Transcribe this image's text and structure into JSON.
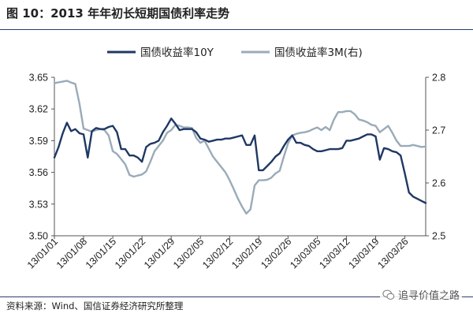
{
  "figure": {
    "title": "图  10：2013 年年初长短期国债利率走势",
    "source": "资料来源：Wind、国信证券经济研究所整理",
    "watermark": "追寻价值之路"
  },
  "chart_data": {
    "type": "line",
    "title": "图  10：2013 年年初长短期国债利率走势",
    "x": [
      "13/01/01",
      "13/01/02",
      "13/01/03",
      "13/01/04",
      "13/01/05",
      "13/01/06",
      "13/01/07",
      "13/01/08",
      "13/01/09",
      "13/01/10",
      "13/01/11",
      "13/01/12",
      "13/01/13",
      "13/01/14",
      "13/01/15",
      "13/01/16",
      "13/01/17",
      "13/01/18",
      "13/01/19",
      "13/01/20",
      "13/01/21",
      "13/01/22",
      "13/01/23",
      "13/01/24",
      "13/01/25",
      "13/01/26",
      "13/01/27",
      "13/01/28",
      "13/01/29",
      "13/01/30",
      "13/01/31",
      "13/02/01",
      "13/02/02",
      "13/02/03",
      "13/02/04",
      "13/02/05",
      "13/02/06",
      "13/02/07",
      "13/02/08",
      "13/02/09",
      "13/02/10",
      "13/02/11",
      "13/02/12",
      "13/02/13",
      "13/02/14",
      "13/02/15",
      "13/02/16",
      "13/02/17",
      "13/02/18",
      "13/02/19",
      "13/02/20",
      "13/02/21",
      "13/02/22",
      "13/02/23",
      "13/02/24",
      "13/02/25",
      "13/02/26",
      "13/02/27",
      "13/02/28",
      "13/03/01",
      "13/03/02",
      "13/03/03",
      "13/03/04",
      "13/03/05",
      "13/03/06",
      "13/03/07",
      "13/03/08",
      "13/03/09",
      "13/03/10",
      "13/03/11",
      "13/03/12",
      "13/03/13",
      "13/03/14",
      "13/03/15",
      "13/03/16",
      "13/03/17",
      "13/03/18",
      "13/03/19",
      "13/03/20",
      "13/03/21",
      "13/03/22",
      "13/03/23",
      "13/03/24",
      "13/03/25",
      "13/03/26",
      "13/03/27",
      "13/03/28",
      "13/03/29",
      "13/03/30",
      "13/03/31"
    ],
    "x_ticks": [
      "13/01/01",
      "13/01/08",
      "13/01/15",
      "13/01/22",
      "13/01/29",
      "13/02/05",
      "13/02/12",
      "13/02/19",
      "13/02/26",
      "13/03/05",
      "13/03/12",
      "13/03/19",
      "13/03/26"
    ],
    "series": [
      {
        "name": "国债收益率10Y",
        "axis": "left",
        "color": "#1f3864",
        "values": [
          3.574,
          3.584,
          3.597,
          3.607,
          3.599,
          3.601,
          3.597,
          3.596,
          3.574,
          3.599,
          3.602,
          3.601,
          3.601,
          3.603,
          3.604,
          3.598,
          3.582,
          3.582,
          3.576,
          3.576,
          3.574,
          3.57,
          3.584,
          3.587,
          3.588,
          3.59,
          3.598,
          3.604,
          3.611,
          3.606,
          3.6,
          3.601,
          3.601,
          3.601,
          3.598,
          3.592,
          3.591,
          3.589,
          3.59,
          3.591,
          3.591,
          3.592,
          3.592,
          3.593,
          3.594,
          3.595,
          3.586,
          3.586,
          3.595,
          3.562,
          3.562,
          3.566,
          3.57,
          3.575,
          3.578,
          3.585,
          3.591,
          3.595,
          3.588,
          3.588,
          3.586,
          3.585,
          3.582,
          3.58,
          3.58,
          3.581,
          3.582,
          3.582,
          3.582,
          3.583,
          3.59,
          3.59,
          3.591,
          3.592,
          3.594,
          3.596,
          3.596,
          3.594,
          3.572,
          3.583,
          3.582,
          3.58,
          3.579,
          3.576,
          3.559,
          3.541,
          3.537,
          3.535,
          3.533,
          3.531
        ]
      },
      {
        "name": "国债收益率3M(右)",
        "axis": "right",
        "color": "#9aabb8",
        "values": [
          2.789,
          2.7905,
          2.792,
          2.7935,
          2.79,
          2.7875,
          2.75,
          2.703,
          2.7,
          2.697,
          2.7,
          2.702,
          2.7,
          2.69,
          2.66,
          2.655,
          2.645,
          2.635,
          2.615,
          2.612,
          2.614,
          2.616,
          2.622,
          2.64,
          2.66,
          2.67,
          2.68,
          2.695,
          2.7,
          2.71,
          2.708,
          2.705,
          2.705,
          2.704,
          2.685,
          2.676,
          2.68,
          2.665,
          2.65,
          2.64,
          2.63,
          2.62,
          2.605,
          2.588,
          2.57,
          2.555,
          2.542,
          2.55,
          2.595,
          2.605,
          2.605,
          2.606,
          2.61,
          2.618,
          2.623,
          2.65,
          2.675,
          2.69,
          2.693,
          2.695,
          2.696,
          2.698,
          2.702,
          2.705,
          2.7,
          2.706,
          2.7,
          2.72,
          2.734,
          2.734,
          2.736,
          2.736,
          2.73,
          2.72,
          2.718,
          2.715,
          2.71,
          2.708,
          2.696,
          2.702,
          2.708,
          2.695,
          2.68,
          2.67,
          2.67,
          2.67,
          2.672,
          2.67,
          2.668,
          2.669
        ]
      }
    ],
    "y_left": {
      "ylim": [
        3.5,
        3.65
      ],
      "ticks": [
        "3.50",
        "3.53",
        "3.56",
        "3.59",
        "3.62",
        "3.65"
      ]
    },
    "y_right": {
      "ylim": [
        2.5,
        2.8
      ],
      "ticks": [
        "2.5",
        "2.6",
        "2.7",
        "2.8"
      ]
    },
    "legend_position": "top-center",
    "grid": false
  }
}
